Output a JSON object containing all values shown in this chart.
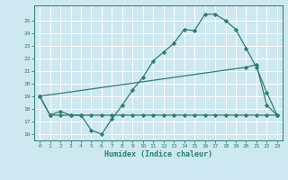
{
  "xlabel": "Humidex (Indice chaleur)",
  "xlim": [
    -0.5,
    23.5
  ],
  "ylim": [
    15.5,
    26.2
  ],
  "xticks": [
    0,
    1,
    2,
    3,
    4,
    5,
    6,
    7,
    8,
    9,
    10,
    11,
    12,
    13,
    14,
    15,
    16,
    17,
    18,
    19,
    20,
    21,
    22,
    23
  ],
  "yticks": [
    16,
    17,
    18,
    19,
    20,
    21,
    22,
    23,
    24,
    25
  ],
  "bg_color": "#cde8f0",
  "line_color": "#2e7d6e",
  "lines": [
    {
      "x": [
        0,
        1,
        2,
        3,
        4,
        5,
        6,
        7,
        8,
        9,
        10,
        11,
        12,
        13,
        14,
        15,
        16,
        17,
        18,
        19,
        20,
        21,
        22,
        23
      ],
      "y": [
        19,
        17.5,
        17.8,
        17.5,
        17.5,
        16.3,
        16.0,
        17.2,
        18.3,
        19.5,
        20.5,
        21.8,
        22.5,
        23.2,
        24.3,
        24.2,
        25.5,
        25.5,
        25.0,
        24.3,
        22.8,
        21.3,
        19.3,
        17.5
      ]
    },
    {
      "x": [
        0,
        1,
        2,
        3,
        4,
        5,
        6,
        7,
        8,
        9,
        10,
        11,
        12,
        13,
        14,
        15,
        16,
        17,
        18,
        19,
        20,
        21,
        22,
        23
      ],
      "y": [
        19,
        17.5,
        17.5,
        17.5,
        17.5,
        17.5,
        17.5,
        17.5,
        17.5,
        17.5,
        17.5,
        17.5,
        17.5,
        17.5,
        17.5,
        17.5,
        17.5,
        17.5,
        17.5,
        17.5,
        17.5,
        17.5,
        17.5,
        17.5
      ]
    },
    {
      "x": [
        0,
        20,
        21,
        22,
        23
      ],
      "y": [
        19,
        21.3,
        21.5,
        18.3,
        17.5
      ]
    }
  ]
}
